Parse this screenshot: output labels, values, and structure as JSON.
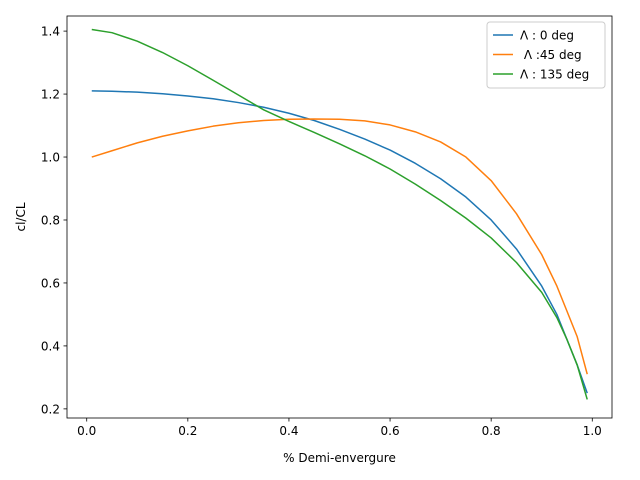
{
  "chart_data": {
    "type": "line",
    "title": "",
    "xlabel": "% Demi-envergure",
    "ylabel": "cl/CL",
    "xlim": [
      -0.039,
      1.039
    ],
    "ylim": [
      0.171,
      1.448
    ],
    "xticks": [
      0.0,
      0.2,
      0.4,
      0.6,
      0.8,
      1.0
    ],
    "xtick_labels": [
      "0.0",
      "0.2",
      "0.4",
      "0.6",
      "0.8",
      "1.0"
    ],
    "yticks": [
      0.2,
      0.4,
      0.6,
      0.8,
      1.0,
      1.2,
      1.4
    ],
    "ytick_labels": [
      "0.2",
      "0.4",
      "0.6",
      "0.8",
      "1.0",
      "1.2",
      "1.4"
    ],
    "grid": false,
    "legend_position": "top-right",
    "series": [
      {
        "name": "Λ : 0 deg",
        "color": "#1f77b4",
        "x": [
          0.01,
          0.05,
          0.1,
          0.15,
          0.2,
          0.25,
          0.3,
          0.35,
          0.4,
          0.45,
          0.5,
          0.55,
          0.6,
          0.65,
          0.7,
          0.75,
          0.8,
          0.85,
          0.9,
          0.93,
          0.95,
          0.97,
          0.99
        ],
        "y": [
          1.21,
          1.209,
          1.206,
          1.201,
          1.194,
          1.185,
          1.173,
          1.158,
          1.139,
          1.116,
          1.088,
          1.057,
          1.022,
          0.98,
          0.931,
          0.873,
          0.8,
          0.708,
          0.59,
          0.5,
          0.42,
          0.34,
          0.25
        ]
      },
      {
        "name": " Λ :45 deg",
        "color": "#ff7f0e",
        "x": [
          0.01,
          0.05,
          0.1,
          0.15,
          0.2,
          0.25,
          0.3,
          0.35,
          0.4,
          0.45,
          0.5,
          0.55,
          0.6,
          0.65,
          0.7,
          0.75,
          0.8,
          0.85,
          0.9,
          0.93,
          0.95,
          0.97,
          0.99
        ],
        "y": [
          1.0,
          1.02,
          1.045,
          1.066,
          1.083,
          1.098,
          1.109,
          1.116,
          1.12,
          1.121,
          1.12,
          1.115,
          1.102,
          1.08,
          1.048,
          1.0,
          0.925,
          0.82,
          0.69,
          0.59,
          0.51,
          0.43,
          0.31
        ]
      },
      {
        "name": "Λ : 135 deg",
        "color": "#2ca02c",
        "x": [
          0.01,
          0.05,
          0.1,
          0.15,
          0.2,
          0.25,
          0.3,
          0.35,
          0.4,
          0.45,
          0.5,
          0.55,
          0.6,
          0.65,
          0.7,
          0.75,
          0.8,
          0.85,
          0.9,
          0.93,
          0.95,
          0.97,
          0.99
        ],
        "y": [
          1.405,
          1.395,
          1.368,
          1.332,
          1.29,
          1.244,
          1.197,
          1.15,
          1.113,
          1.078,
          1.042,
          1.004,
          0.962,
          0.914,
          0.862,
          0.806,
          0.743,
          0.665,
          0.57,
          0.49,
          0.42,
          0.34,
          0.23
        ]
      }
    ]
  }
}
